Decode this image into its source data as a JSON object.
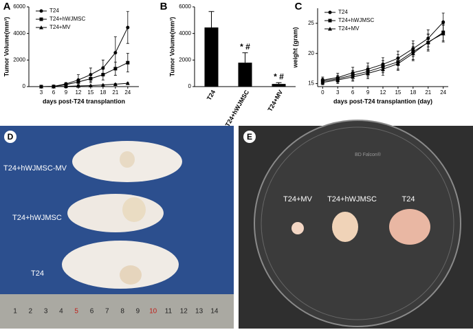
{
  "chart_data": [
    {
      "type": "line",
      "panel": "A",
      "xlabel": "days post-T24 transplantion",
      "ylabel": "Tumor Volume(mm³)",
      "x": [
        3,
        6,
        9,
        12,
        15,
        18,
        21,
        24
      ],
      "xlim": [
        0,
        26.7
      ],
      "xticks": [
        3,
        6,
        9,
        12,
        15,
        18,
        21,
        24
      ],
      "ylim": [
        0,
        6000
      ],
      "yticks": [
        0,
        2000,
        4000,
        6000
      ],
      "legend": "upper left",
      "series": [
        {
          "name": "T24",
          "color": "#000000",
          "marker": "circle",
          "values": [
            0,
            20,
            200,
            500,
            900,
            1400,
            2550,
            4450
          ],
          "errors": [
            0,
            20,
            100,
            400,
            500,
            600,
            1200,
            1200
          ]
        },
        {
          "name": "T24+hWJMSC",
          "color": "#000000",
          "marker": "square",
          "values": [
            0,
            10,
            150,
            350,
            600,
            900,
            1350,
            1800
          ],
          "errors": [
            0,
            10,
            100,
            200,
            300,
            400,
            500,
            700
          ]
        },
        {
          "name": "T24+MV",
          "color": "#000000",
          "marker": "triangle",
          "values": [
            0,
            0,
            20,
            50,
            80,
            120,
            180,
            250
          ],
          "errors": [
            0,
            0,
            10,
            20,
            30,
            40,
            50,
            60
          ]
        }
      ]
    },
    {
      "type": "bar",
      "panel": "B",
      "ylabel": "Tumor Volume(mm³)",
      "categories": [
        "T24",
        "T24+hWJMSC",
        "T24+MV"
      ],
      "values": [
        4450,
        1800,
        200
      ],
      "errors": [
        1200,
        750,
        100
      ],
      "value_annotations": [
        null,
        "* #",
        "* #"
      ],
      "color": "#000000",
      "ylim": [
        0,
        6000
      ],
      "yticks": [
        0,
        2000,
        4000,
        6000
      ]
    },
    {
      "type": "line",
      "panel": "C",
      "xlabel": "days post-T24 transplantion (day)",
      "ylabel": "weight (gram)",
      "x": [
        0,
        3,
        6,
        9,
        12,
        15,
        18,
        21,
        24
      ],
      "xlim": [
        -1,
        25
      ],
      "xticks": [
        0,
        3,
        6,
        9,
        12,
        15,
        18,
        21,
        24
      ],
      "ylim": [
        14.5,
        27.5
      ],
      "yticks": [
        15,
        20,
        25
      ],
      "legend": "upper left",
      "series": [
        {
          "name": "T24",
          "color": "#000000",
          "marker": "circle",
          "values": [
            15.6,
            16.0,
            16.8,
            17.4,
            18.2,
            19.2,
            20.8,
            22.5,
            25.2
          ],
          "errors": [
            0.5,
            0.7,
            0.9,
            1.0,
            1.1,
            1.2,
            1.3,
            1.4,
            1.5
          ]
        },
        {
          "name": "T24+hWJMSC",
          "color": "#000000",
          "marker": "square",
          "values": [
            15.4,
            15.8,
            16.4,
            17.0,
            17.8,
            18.6,
            20.3,
            21.8,
            23.5
          ],
          "errors": [
            0.5,
            0.6,
            0.8,
            0.9,
            1.0,
            1.2,
            1.3,
            1.4,
            1.4
          ]
        },
        {
          "name": "T24+MV",
          "color": "#000000",
          "marker": "triangle",
          "values": [
            15.2,
            15.6,
            16.1,
            16.7,
            17.4,
            18.3,
            20.0,
            21.9,
            23.3
          ],
          "errors": [
            0.4,
            0.6,
            0.7,
            0.9,
            1.0,
            1.1,
            1.2,
            1.3,
            1.4
          ]
        }
      ]
    }
  ],
  "figure_panels": [
    {
      "panel": "D",
      "labels": [
        "T24+hWJMSC-MV",
        "T24+hWJMSC",
        "T24"
      ],
      "ruler": [
        1,
        2,
        3,
        4,
        5,
        6,
        7,
        8,
        9,
        10,
        11,
        12,
        13,
        14
      ]
    },
    {
      "panel": "E",
      "labels": [
        "T24+MV",
        "T24+hWJMSC",
        "T24"
      ],
      "brand": "BD Falcon®"
    }
  ]
}
